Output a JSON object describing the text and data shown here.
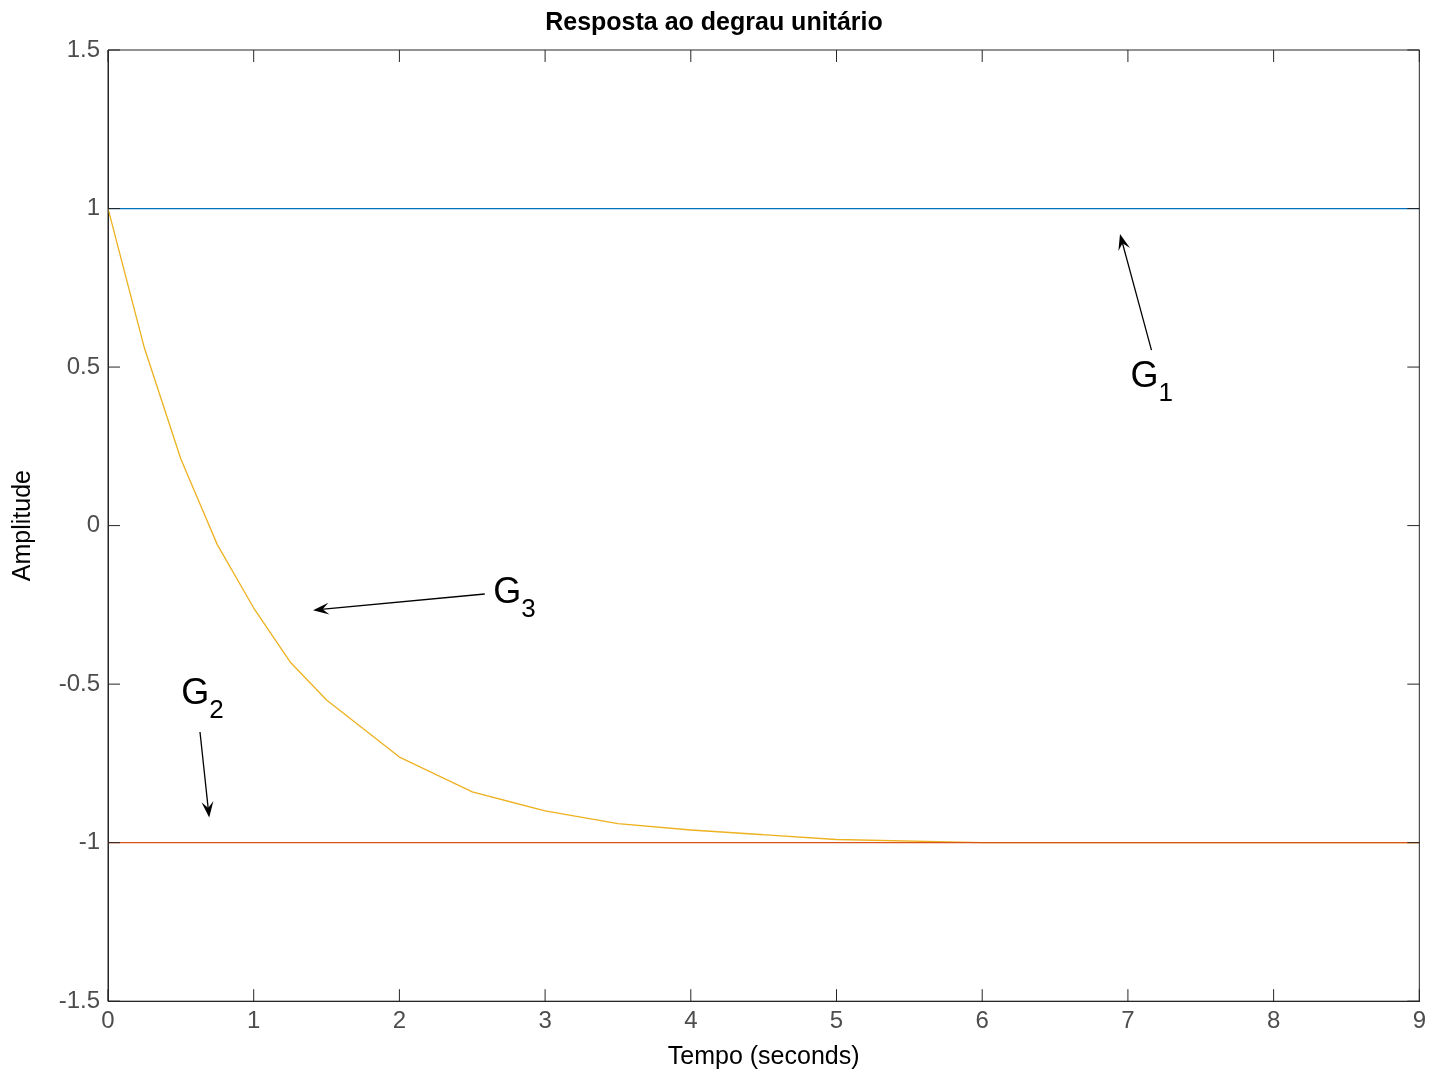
{
  "chart_data": {
    "type": "line",
    "title": "Resposta ao degrau unitário",
    "xlabel": "Tempo (seconds)",
    "ylabel": "Amplitude",
    "xlim": [
      0,
      9
    ],
    "xticks": [
      0,
      1,
      2,
      3,
      4,
      5,
      6,
      7,
      8,
      9
    ],
    "ylim": [
      -1.5,
      1.5
    ],
    "yticks": [
      -1.5,
      -1,
      -0.5,
      0,
      0.5,
      1,
      1.5
    ],
    "grid": false,
    "legend": false,
    "marker": "none",
    "line_style": "solid",
    "series": [
      {
        "color": "#0072bd",
        "x": [
          0,
          9
        ],
        "values": [
          1,
          1
        ]
      },
      {
        "color": "#d95319",
        "x": [
          0,
          9
        ],
        "values": [
          -1,
          -1
        ]
      },
      {
        "color": "#edb120",
        "x": [
          0,
          0.25,
          0.5,
          0.75,
          1,
          1.25,
          1.5,
          2,
          2.5,
          3,
          3.5,
          4,
          5,
          6,
          7,
          8,
          9
        ],
        "values": [
          1,
          0.56,
          0.21,
          -0.06,
          -0.26,
          -0.43,
          -0.55,
          -0.73,
          -0.84,
          -0.9,
          -0.94,
          -0.96,
          -0.99,
          -1,
          -1,
          -1,
          -1
        ]
      }
    ],
    "annotations": [
      "G$_{1}$",
      "G$_{2}$",
      "G$_{3}$"
    ]
  }
}
